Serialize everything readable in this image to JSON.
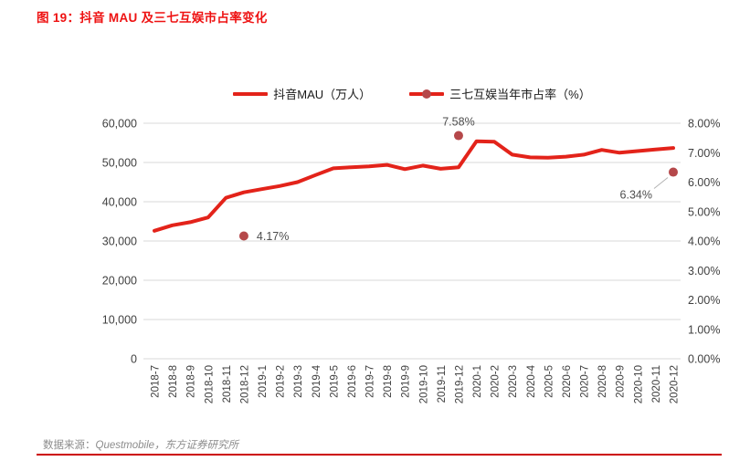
{
  "figure": {
    "title_prefix": "图 19：",
    "title_text": "抖音 MAU 及三七互娱市占率变化"
  },
  "legend": {
    "items": [
      {
        "label": "抖音MAU（万人）",
        "swatch": "line"
      },
      {
        "label": "三七互娱当年市占率（%）",
        "swatch": "line-dot"
      }
    ]
  },
  "footer": {
    "prefix": "数据来源：",
    "source": "Questmobile，东方证券研究所"
  },
  "colors": {
    "title_red": "#ee1111",
    "line_red": "#e3231a",
    "dot_red": "#b5484a",
    "grid": "#d9d9d9",
    "axis_text": "#404040",
    "annotation_text": "#4d4d4d",
    "footer_text": "#8c8c8c",
    "footer_rule": "#cc0000",
    "leader_line": "#b3b3b3"
  },
  "chart_data": {
    "type": "line",
    "title": "抖音 MAU 及三七互娱市占率变化",
    "x": [
      "2018-7",
      "2018-8",
      "2018-9",
      "2018-10",
      "2018-11",
      "2018-12",
      "2019-1",
      "2019-2",
      "2019-3",
      "2019-4",
      "2019-5",
      "2019-6",
      "2019-7",
      "2019-8",
      "2019-9",
      "2019-10",
      "2019-11",
      "2019-12",
      "2020-1",
      "2020-2",
      "2020-3",
      "2020-4",
      "2020-5",
      "2020-6",
      "2020-7",
      "2020-8",
      "2020-9",
      "2020-10",
      "2020-11",
      "2020-12"
    ],
    "series": [
      {
        "name": "抖音MAU（万人）",
        "type": "line",
        "y_axis": "left",
        "values": [
          32600,
          34000,
          34800,
          36000,
          41000,
          42400,
          43200,
          44000,
          45000,
          46800,
          48500,
          48800,
          49000,
          49400,
          48300,
          49200,
          48400,
          48800,
          55400,
          55300,
          52000,
          51300,
          51200,
          51500,
          52000,
          53200,
          52500,
          52900,
          53300,
          53700
        ]
      },
      {
        "name": "三七互娱当年市占率（%）",
        "type": "scatter",
        "y_axis": "right",
        "points": [
          {
            "x": "2018-12",
            "value": 4.17,
            "label": "4.17%",
            "label_pos": "right"
          },
          {
            "x": "2019-12",
            "value": 7.58,
            "label": "7.58%",
            "label_pos": "above"
          },
          {
            "x": "2020-12",
            "value": 6.34,
            "label": "6.34%",
            "label_pos": "below-left-leader"
          }
        ]
      }
    ],
    "left_axis": {
      "min": 0,
      "max": 60000,
      "tick_labels": [
        "60,000",
        "50,000",
        "40,000",
        "30,000",
        "20,000",
        "10,000",
        "0"
      ]
    },
    "right_axis": {
      "min": 0,
      "max": 8,
      "tick_labels": [
        "8.00%",
        "7.00%",
        "6.00%",
        "5.00%",
        "4.00%",
        "3.00%",
        "2.00%",
        "1.00%",
        "0.00%"
      ]
    },
    "grid": true,
    "legend_position": "top-center"
  }
}
